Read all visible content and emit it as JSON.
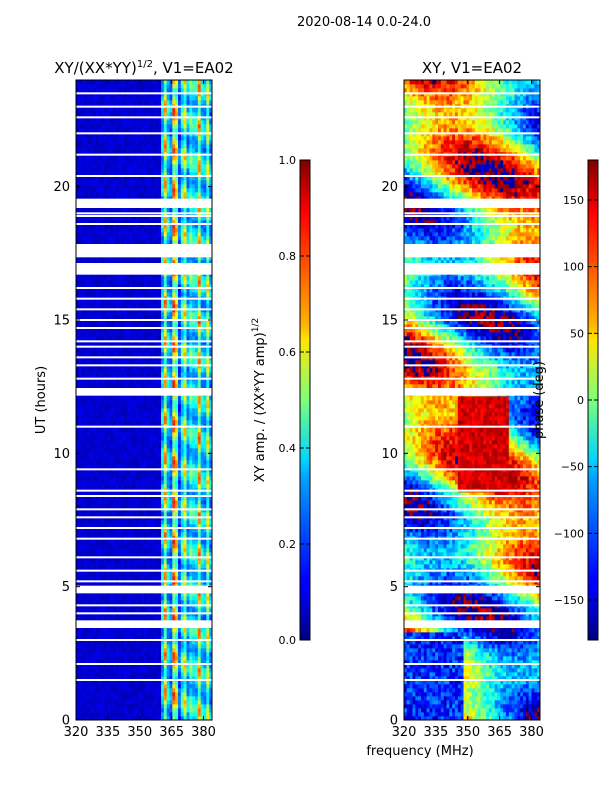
{
  "figure": {
    "suptitle": "2020-08-14 0.0-24.0",
    "shared_xlabel": "frequency (MHz)"
  },
  "chart_data": [
    {
      "type": "heatmap",
      "title_main": "XY/(XX*YY)",
      "title_sup": "1/2",
      "title_tail": ", V1=EA02",
      "xlabel": "",
      "ylabel": "UT (hours)",
      "xlim": [
        320,
        384
      ],
      "ylim": [
        0,
        24
      ],
      "xticks": [
        320,
        335,
        350,
        365,
        380
      ],
      "yticks": [
        0,
        5,
        10,
        15,
        20
      ],
      "colormap": "jet",
      "colorbar": {
        "label_main": "XY amp. / (XX*YY amp)",
        "label_sup": "1/2",
        "vmin": 0.0,
        "vmax": 1.0,
        "ticks": [
          "0.0",
          "0.2",
          "0.4",
          "0.6",
          "0.8",
          "1.0"
        ],
        "tick_values": [
          0.0,
          0.2,
          0.4,
          0.6,
          0.8,
          1.0
        ]
      },
      "flagged_ut_hours": [
        23.5,
        23.0,
        22.6,
        22.0,
        21.2,
        20.4,
        19.3,
        19.0,
        18.9,
        18.6,
        17.7,
        17.4,
        17.1,
        16.2,
        15.8,
        15.4,
        15.0,
        14.7,
        14.2,
        14.0,
        13.6,
        13.3,
        12.8,
        12.4,
        12.2,
        11.0,
        9.4,
        8.6,
        8.4,
        7.9,
        7.6,
        7.2,
        6.8,
        6.1,
        5.6,
        5.2,
        5.0,
        4.8,
        4.3,
        4.0,
        3.7,
        3.5,
        3.0,
        2.1,
        1.5
      ],
      "dense_flag_ranges_ut": [
        [
          19.2,
          19.55
        ],
        [
          17.35,
          17.85
        ],
        [
          16.7,
          17.1
        ],
        [
          12.2,
          12.45
        ],
        [
          4.75,
          5.0
        ],
        [
          3.45,
          3.7
        ]
      ]
    },
    {
      "type": "heatmap",
      "title": "XY, V1=EA02",
      "xlabel": "frequency (MHz)",
      "ylabel": "",
      "xlim": [
        320,
        384
      ],
      "ylim": [
        0,
        24
      ],
      "xticks": [
        320,
        335,
        350,
        365,
        380
      ],
      "yticks": [
        0,
        5,
        10,
        15,
        20
      ],
      "colormap": "jet",
      "colorbar": {
        "label": "phase (deg)",
        "vmin": -180,
        "vmax": 180,
        "ticks": [
          "150",
          "100",
          "50",
          "0",
          "−50",
          "−100",
          "−150"
        ],
        "tick_values": [
          150,
          100,
          50,
          0,
          -50,
          -100,
          -150
        ]
      },
      "flagged_ut_hours": [
        23.5,
        23.0,
        22.6,
        22.0,
        21.2,
        20.4,
        19.3,
        19.0,
        18.9,
        18.6,
        17.7,
        17.4,
        17.1,
        16.2,
        15.8,
        15.4,
        15.0,
        14.7,
        14.2,
        14.0,
        13.6,
        13.3,
        12.8,
        12.4,
        12.2,
        11.0,
        9.4,
        8.6,
        8.4,
        7.9,
        7.6,
        7.2,
        6.8,
        6.1,
        5.6,
        5.2,
        5.0,
        4.8,
        4.3,
        4.0,
        3.7,
        3.5,
        3.0,
        2.1,
        1.5
      ],
      "dense_flag_ranges_ut": [
        [
          19.2,
          19.55
        ],
        [
          17.35,
          17.85
        ],
        [
          16.7,
          17.1
        ],
        [
          12.2,
          12.45
        ],
        [
          4.75,
          5.0
        ],
        [
          3.45,
          3.7
        ]
      ]
    }
  ]
}
